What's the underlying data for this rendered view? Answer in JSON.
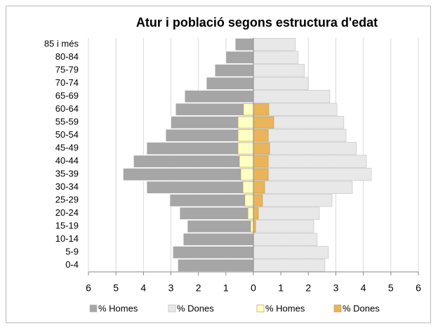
{
  "chart_data": {
    "type": "pyramid",
    "title": "Atur i població segons estructura d'edat",
    "categories": [
      "85 i més",
      "80-84",
      "75-79",
      "70-74",
      "65-69",
      "60-64",
      "55-59",
      "50-54",
      "45-49",
      "40-44",
      "35-39",
      "30-34",
      "25-29",
      "20-24",
      "15-19",
      "10-14",
      "5-9",
      "0-4"
    ],
    "series": [
      {
        "name": "% Homes",
        "color": "#a6a6a6",
        "values": [
          -0.66,
          -1.0,
          -1.4,
          -1.71,
          -2.5,
          -2.83,
          -3.0,
          -3.19,
          -3.88,
          -4.36,
          -4.74,
          -3.88,
          -3.04,
          -2.68,
          -2.4,
          -2.55,
          -2.93,
          -2.75
        ]
      },
      {
        "name": "% Dones",
        "color": "#e8e8e8",
        "values": [
          1.53,
          1.63,
          1.86,
          1.99,
          2.78,
          3.04,
          3.29,
          3.37,
          3.75,
          4.11,
          4.29,
          3.6,
          2.86,
          2.4,
          2.2,
          2.32,
          2.73,
          2.6
        ]
      },
      {
        "name": "% Homes",
        "color": "#ffffc4",
        "values": [
          null,
          null,
          null,
          null,
          null,
          -0.36,
          -0.56,
          -0.56,
          -0.56,
          -0.51,
          -0.46,
          -0.38,
          -0.31,
          -0.2,
          -0.1,
          null,
          null,
          null
        ]
      },
      {
        "name": "% Dones",
        "color": "#eab45a",
        "values": [
          null,
          null,
          null,
          null,
          null,
          0.56,
          0.74,
          0.54,
          0.59,
          0.54,
          0.54,
          0.41,
          0.33,
          0.18,
          0.08,
          null,
          null,
          null
        ]
      }
    ],
    "xlim": [
      -6,
      6
    ],
    "xticks": [
      {
        "value": -6,
        "label": "6"
      },
      {
        "value": -5,
        "label": "5"
      },
      {
        "value": -4,
        "label": "4"
      },
      {
        "value": -3,
        "label": "3"
      },
      {
        "value": -2,
        "label": "2"
      },
      {
        "value": -1,
        "label": "1"
      },
      0,
      1,
      2,
      3,
      4,
      5,
      6
    ],
    "grid": true
  }
}
